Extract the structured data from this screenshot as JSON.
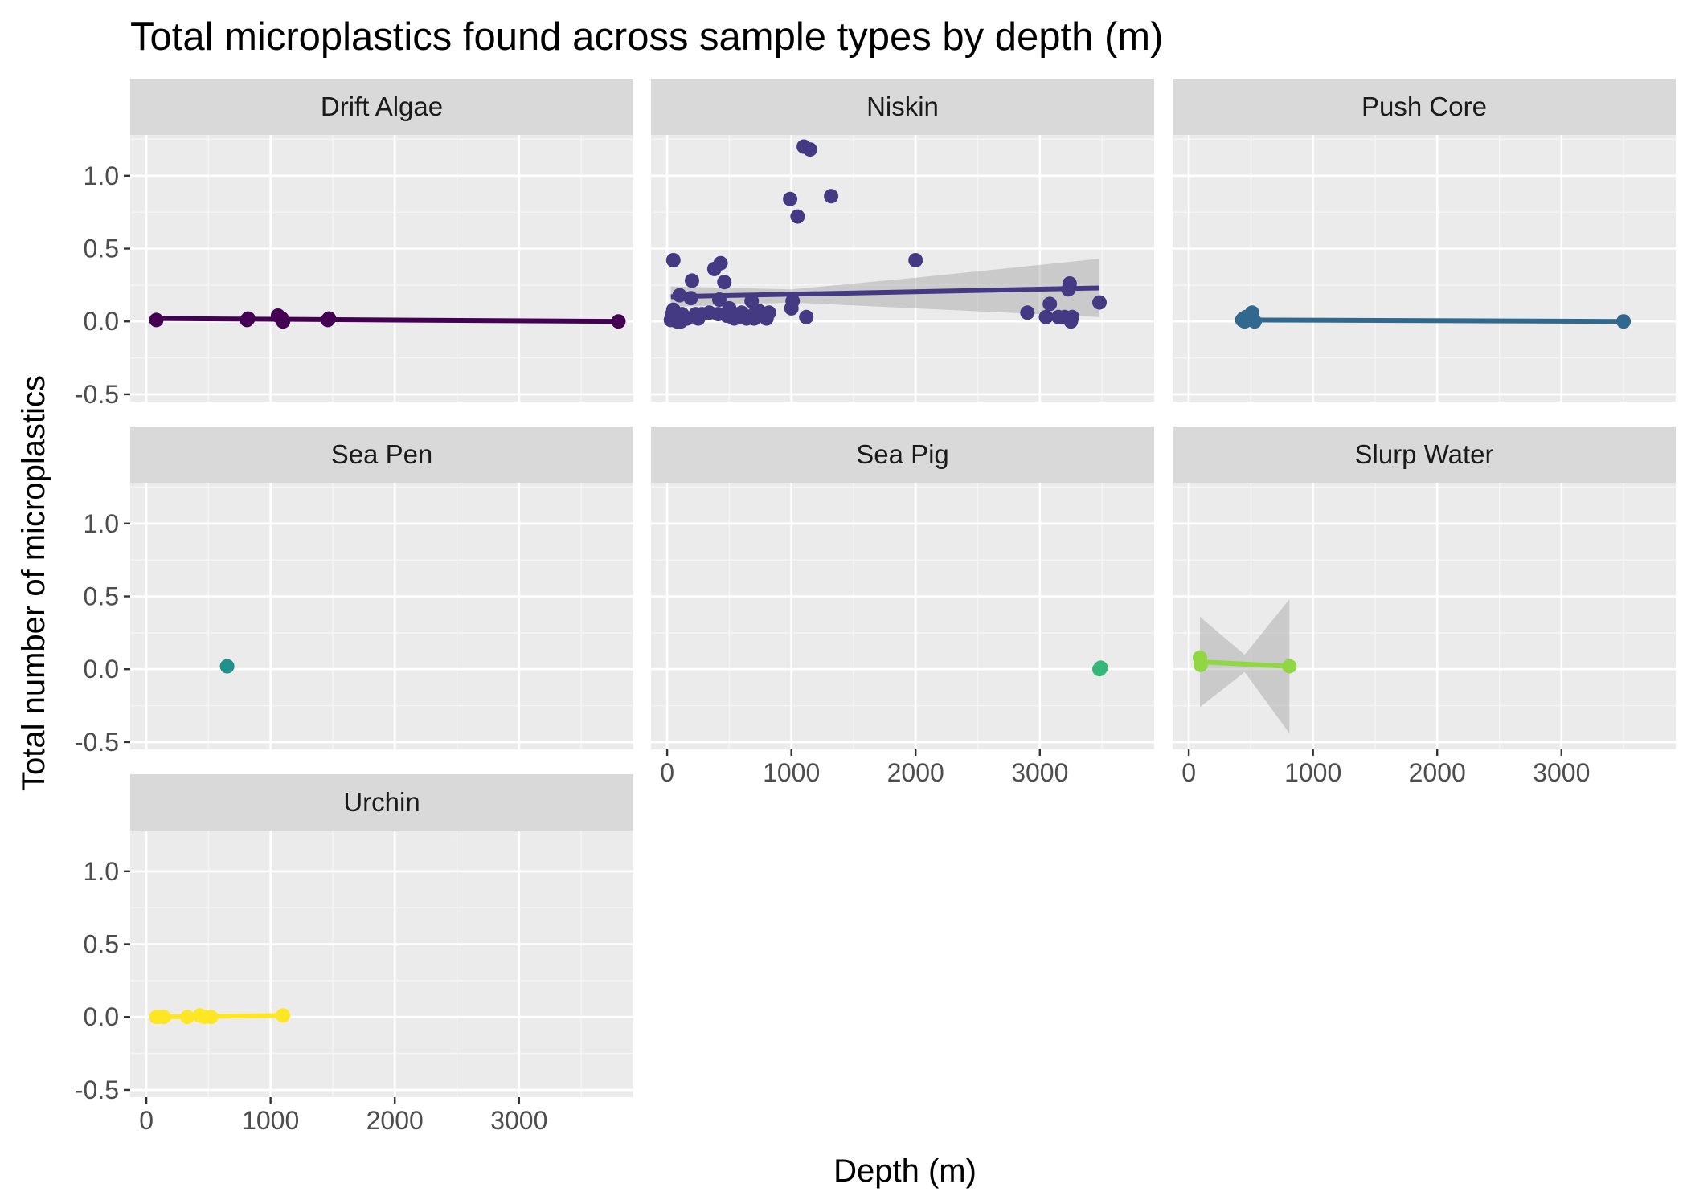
{
  "chart_data": {
    "type": "scatter",
    "title": "Total microplastics found across sample types by depth (m)",
    "xlabel": "Depth (m)",
    "ylabel": "Total number of microplastics",
    "xlim": [
      -130,
      3920
    ],
    "ylim": [
      -0.55,
      1.28
    ],
    "x_ticks": [
      0,
      1000,
      2000,
      3000
    ],
    "y_ticks": [
      -0.5,
      0.0,
      0.5,
      1.0
    ],
    "y_tick_labels": [
      "-0.5",
      "0.0",
      "0.5",
      "1.0"
    ],
    "grid": true,
    "smoothing": "linear fit with confidence band",
    "panels": [
      {
        "name": "Drift Algae",
        "color": "#440154",
        "points": [
          [
            80,
            0.01
          ],
          [
            810,
            0.01
          ],
          [
            820,
            0.02
          ],
          [
            1060,
            0.04
          ],
          [
            1090,
            0.02
          ],
          [
            1100,
            0.0
          ],
          [
            1460,
            0.01
          ],
          [
            1470,
            0.02
          ],
          [
            3800,
            0.0
          ]
        ],
        "fit": {
          "x": [
            80,
            3800
          ],
          "y": [
            0.02,
            0.0
          ]
        }
      },
      {
        "name": "Niskin",
        "color": "#443983",
        "points": [
          [
            30,
            0.01
          ],
          [
            40,
            0.05
          ],
          [
            50,
            0.08
          ],
          [
            50,
            0.42
          ],
          [
            60,
            0.02
          ],
          [
            80,
            0.0
          ],
          [
            90,
            0.03
          ],
          [
            100,
            0.18
          ],
          [
            110,
            0.0
          ],
          [
            120,
            0.05
          ],
          [
            140,
            0.03
          ],
          [
            160,
            0.02
          ],
          [
            190,
            0.16
          ],
          [
            200,
            0.28
          ],
          [
            230,
            0.05
          ],
          [
            250,
            0.02
          ],
          [
            280,
            0.05
          ],
          [
            340,
            0.06
          ],
          [
            380,
            0.36
          ],
          [
            410,
            0.05
          ],
          [
            420,
            0.15
          ],
          [
            430,
            0.4
          ],
          [
            460,
            0.27
          ],
          [
            480,
            0.04
          ],
          [
            500,
            0.09
          ],
          [
            520,
            0.03
          ],
          [
            540,
            0.02
          ],
          [
            570,
            0.03
          ],
          [
            600,
            0.06
          ],
          [
            640,
            0.02
          ],
          [
            680,
            0.14
          ],
          [
            700,
            0.05
          ],
          [
            700,
            0.02
          ],
          [
            740,
            0.07
          ],
          [
            770,
            0.05
          ],
          [
            800,
            0.02
          ],
          [
            820,
            0.06
          ],
          [
            990,
            0.84
          ],
          [
            1000,
            0.09
          ],
          [
            1010,
            0.14
          ],
          [
            1050,
            0.72
          ],
          [
            1100,
            1.2
          ],
          [
            1120,
            0.03
          ],
          [
            1150,
            1.18
          ],
          [
            1320,
            0.86
          ],
          [
            2000,
            0.42
          ],
          [
            2900,
            0.06
          ],
          [
            3050,
            0.03
          ],
          [
            3080,
            0.12
          ],
          [
            3150,
            0.03
          ],
          [
            3200,
            0.03
          ],
          [
            3230,
            0.22
          ],
          [
            3240,
            0.26
          ],
          [
            3250,
            0.0
          ],
          [
            3260,
            0.03
          ],
          [
            3480,
            0.13
          ]
        ],
        "fit": {
          "x": [
            30,
            3480
          ],
          "y": [
            0.17,
            0.23
          ]
        },
        "band": {
          "x": [
            30,
            1000,
            2000,
            3480
          ],
          "lo": [
            0.1,
            0.13,
            0.09,
            0.03
          ],
          "hi": [
            0.24,
            0.22,
            0.3,
            0.43
          ]
        }
      },
      {
        "name": "Push Core",
        "color": "#31688e",
        "points": [
          [
            430,
            0.01
          ],
          [
            440,
            0.02
          ],
          [
            450,
            0.0
          ],
          [
            460,
            0.03
          ],
          [
            510,
            0.06
          ],
          [
            520,
            0.01
          ],
          [
            530,
            0.0
          ],
          [
            3500,
            0.0
          ]
        ],
        "fit": {
          "x": [
            430,
            3500
          ],
          "y": [
            0.01,
            0.0
          ]
        }
      },
      {
        "name": "Sea Pen",
        "color": "#21918c",
        "points": [
          [
            650,
            0.02
          ]
        ],
        "fit": null
      },
      {
        "name": "Sea Pig",
        "color": "#35b779",
        "points": [
          [
            3480,
            0.0
          ],
          [
            3490,
            0.01
          ]
        ],
        "fit": null
      },
      {
        "name": "Slurp Water",
        "color": "#90d743",
        "points": [
          [
            90,
            0.08
          ],
          [
            95,
            0.03
          ],
          [
            810,
            0.02
          ]
        ],
        "fit": {
          "x": [
            90,
            810
          ],
          "y": [
            0.05,
            0.02
          ]
        },
        "band": {
          "x": [
            90,
            450,
            810
          ],
          "lo": [
            -0.26,
            -0.02,
            -0.44
          ],
          "hi": [
            0.36,
            0.1,
            0.48
          ]
        }
      },
      {
        "name": "Urchin",
        "color": "#fde725",
        "points": [
          [
            80,
            0.0
          ],
          [
            100,
            0.0
          ],
          [
            140,
            0.0
          ],
          [
            330,
            0.0
          ],
          [
            430,
            0.01
          ],
          [
            470,
            0.0
          ],
          [
            520,
            0.0
          ],
          [
            1100,
            0.01
          ]
        ],
        "fit": {
          "x": [
            80,
            1100
          ],
          "y": [
            0.0,
            0.01
          ]
        }
      }
    ]
  }
}
